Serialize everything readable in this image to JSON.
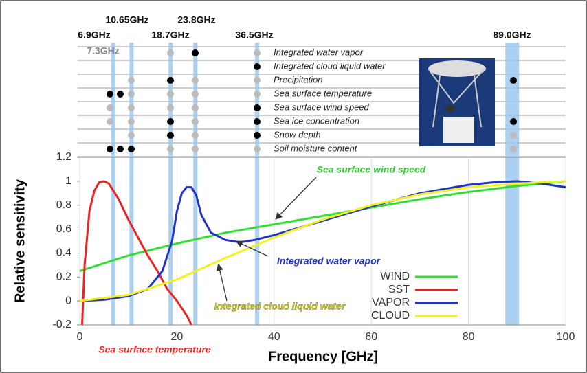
{
  "chart_data": {
    "type": "line",
    "xlabel": "Frequency [GHz]",
    "ylabel": "Relative sensitivity",
    "xlim": [
      0,
      100
    ],
    "ylim": [
      -0.2,
      1.2
    ],
    "xticks": [
      0,
      20,
      40,
      60,
      80,
      100
    ],
    "yticks": [
      -0.2,
      0,
      0.2,
      0.4,
      0.6,
      0.8,
      1,
      1.2
    ],
    "grid": true,
    "series": [
      {
        "name": "WIND",
        "color": "#33dd33",
        "x": [
          0,
          10,
          20,
          30,
          40,
          50,
          60,
          70,
          80,
          90,
          100
        ],
        "values": [
          0.25,
          0.38,
          0.48,
          0.57,
          0.64,
          0.71,
          0.78,
          0.85,
          0.91,
          0.96,
          1.0
        ]
      },
      {
        "name": "SST",
        "color": "#ee2222",
        "x": [
          0.5,
          1,
          2,
          3,
          4,
          5,
          6,
          8,
          10,
          12,
          14,
          16,
          18,
          20,
          22,
          23
        ],
        "values": [
          -0.2,
          0.3,
          0.75,
          0.92,
          0.99,
          1.0,
          0.98,
          0.85,
          0.68,
          0.53,
          0.38,
          0.25,
          0.1,
          0.0,
          -0.12,
          -0.2
        ]
      },
      {
        "name": "VAPOR",
        "color": "#2233cc",
        "x": [
          0,
          5,
          10,
          14,
          17,
          19,
          20,
          21,
          22,
          23,
          24,
          25,
          27,
          30,
          33,
          36,
          40,
          50,
          60,
          70,
          80,
          85,
          90,
          95,
          100
        ],
        "values": [
          0,
          0.01,
          0.04,
          0.1,
          0.25,
          0.5,
          0.75,
          0.9,
          0.95,
          0.95,
          0.88,
          0.72,
          0.57,
          0.51,
          0.49,
          0.51,
          0.55,
          0.67,
          0.79,
          0.9,
          0.97,
          0.99,
          1.0,
          0.98,
          0.95
        ]
      },
      {
        "name": "CLOUD",
        "color": "#f2f222",
        "x": [
          0,
          10,
          20,
          30,
          40,
          50,
          60,
          70,
          80,
          90,
          100
        ],
        "values": [
          0,
          0.05,
          0.18,
          0.36,
          0.53,
          0.68,
          0.8,
          0.89,
          0.95,
          0.98,
          1.0
        ]
      }
    ],
    "channels": [
      {
        "label": "6.9GHz",
        "value": 6.9
      },
      {
        "label": "7.3GHz",
        "value": 7.3
      },
      {
        "label": "10.65GHz",
        "value": 10.65
      },
      {
        "label": "18.7GHz",
        "value": 18.7
      },
      {
        "label": "23.8GHz",
        "value": 23.8
      },
      {
        "label": "36.5GHz",
        "value": 36.5
      },
      {
        "label": "89.0GHz",
        "value": 89.0
      }
    ],
    "products": [
      {
        "name": "Integrated water vapor",
        "dots": [
          null,
          null,
          null,
          "#bbbbbb",
          "#000000",
          "#bbbbbb",
          null
        ]
      },
      {
        "name": "Integrated cloud liquid water",
        "dots": [
          null,
          null,
          null,
          null,
          null,
          "#000000",
          null
        ]
      },
      {
        "name": "Precipitation",
        "dots": [
          null,
          null,
          "#bbbbbb",
          "#000000",
          "#bbbbbb",
          "#bbbbbb",
          "#000000"
        ]
      },
      {
        "name": "Sea surface temperature",
        "dots": [
          "#000000",
          "#000000",
          "#bbbbbb",
          "#bbbbbb",
          "#bbbbbb",
          "#bbbbbb",
          null
        ]
      },
      {
        "name": "Sea surface wind speed",
        "dots": [
          "#bbbbbb",
          null,
          "#bbbbbb",
          "#bbbbbb",
          "#bbbbbb",
          "#000000",
          null
        ]
      },
      {
        "name": "Sea ice concentration",
        "dots": [
          "#bbbbbb",
          null,
          "#bbbbbb",
          "#000000",
          "#bbbbbb",
          "#000000",
          "#000000"
        ]
      },
      {
        "name": "Snow depth",
        "dots": [
          null,
          null,
          "#bbbbbb",
          "#000000",
          "#bbbbbb",
          "#000000",
          "#bbbbbb"
        ]
      },
      {
        "name": "Soil moisture content",
        "dots": [
          "#000000",
          "#000000",
          "#000000",
          "#bbbbbb",
          "#bbbbbb",
          "#bbbbbb",
          "#bbbbbb"
        ]
      }
    ],
    "annotations": [
      {
        "text": "Sea surface wind speed",
        "color": "#33cc33"
      },
      {
        "text": "Integrated water vapor",
        "color": "#2233cc"
      },
      {
        "text": "Integrated cloud liquid water",
        "color": "#dddd00"
      },
      {
        "text": "Sea surface temperature",
        "color": "#ee2222"
      }
    ]
  }
}
